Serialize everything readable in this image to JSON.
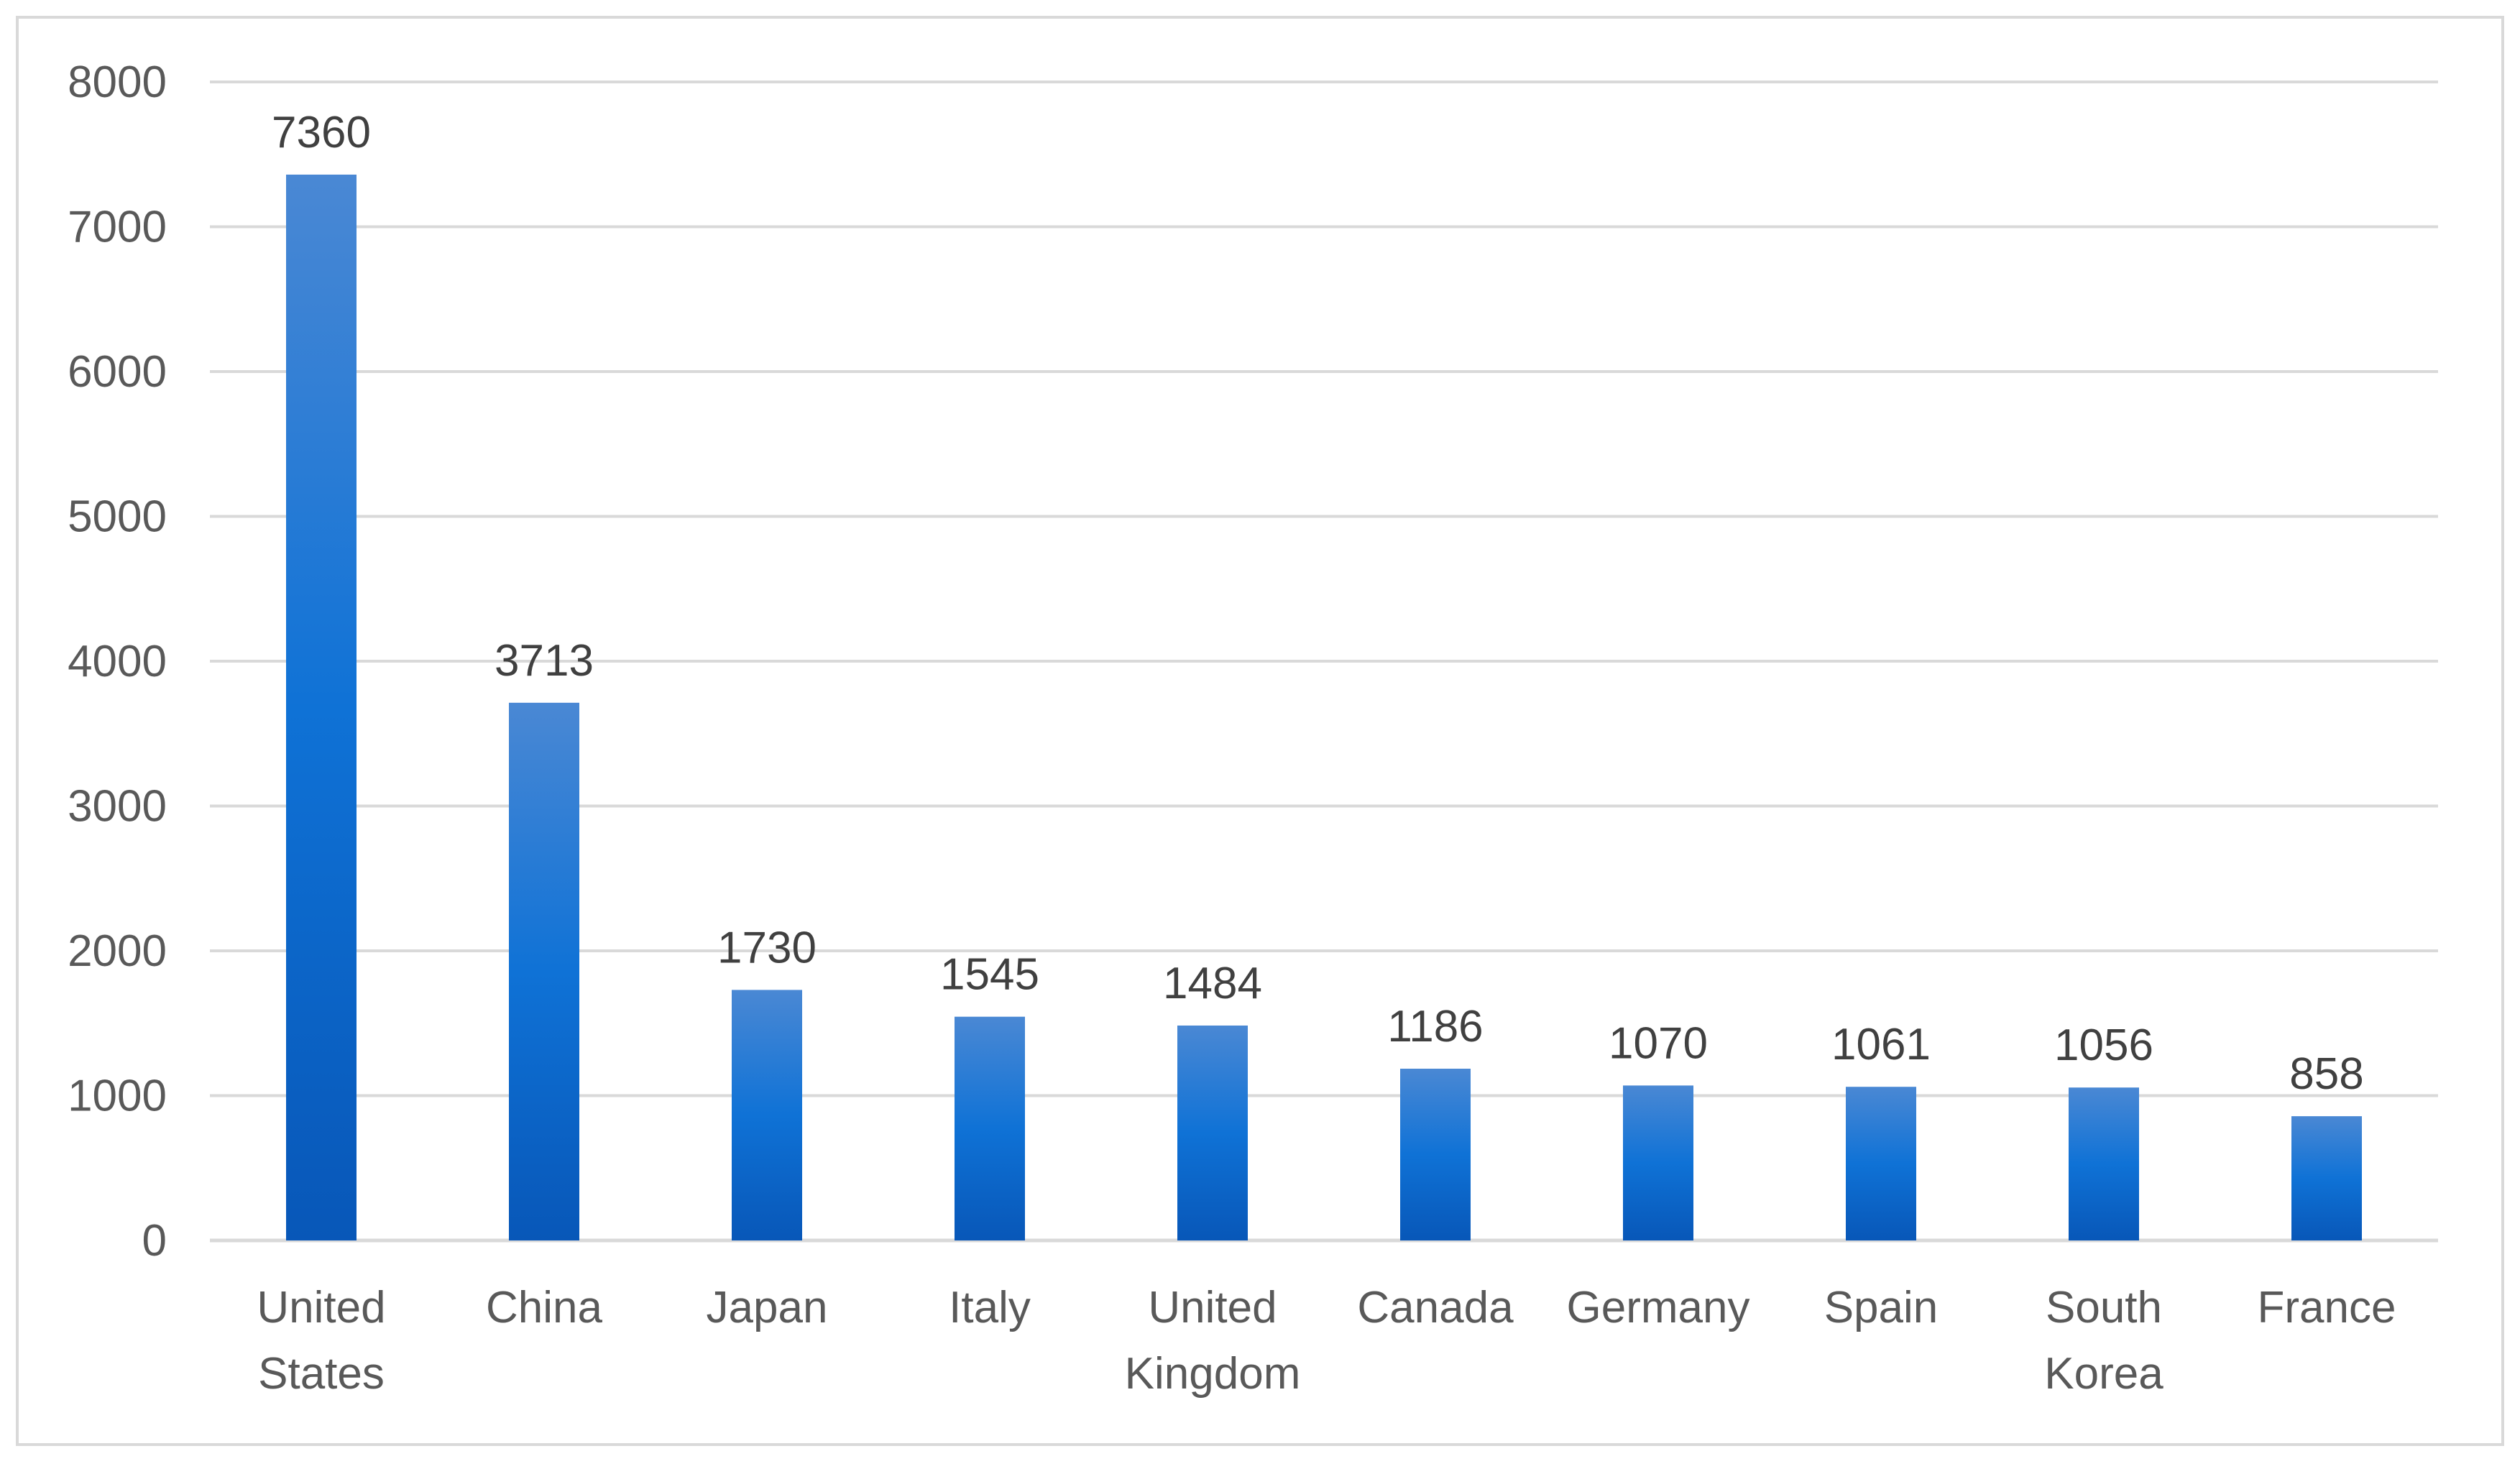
{
  "chart_data": {
    "type": "bar",
    "categories": [
      [
        "United",
        "States"
      ],
      [
        "China"
      ],
      [
        "Japan"
      ],
      [
        "Italy"
      ],
      [
        "United",
        "Kingdom"
      ],
      [
        "Canada"
      ],
      [
        "Germany"
      ],
      [
        "Spain"
      ],
      [
        "South",
        "Korea"
      ],
      [
        "France"
      ]
    ],
    "values": [
      7360,
      3713,
      1730,
      1545,
      1484,
      1186,
      1070,
      1061,
      1056,
      858
    ],
    "data_labels": [
      "7360",
      "3713",
      "1730",
      "1545",
      "1484",
      "1186",
      "1070",
      "1061",
      "1056",
      "858"
    ],
    "title": "",
    "xlabel": "",
    "ylabel": "",
    "ylim": [
      0,
      8000
    ],
    "y_ticks": [
      "0",
      "1000",
      "2000",
      "3000",
      "4000",
      "5000",
      "6000",
      "7000",
      "8000"
    ],
    "grid": true,
    "legend": "none",
    "colors": {
      "bar_light": "#4a88d4",
      "bar_mid": "#0f72d6",
      "bar_dark": "#0857b8",
      "gridline": "#d9d9d9",
      "axis_line": "#d9d9d9",
      "tick_text": "#595959",
      "label_text": "#404040"
    }
  }
}
